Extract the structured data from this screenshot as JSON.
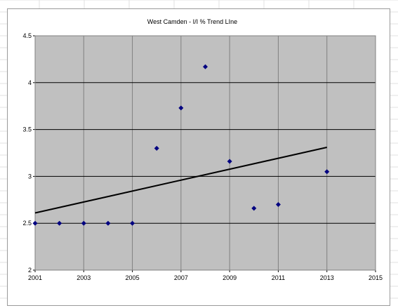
{
  "chart_data": {
    "type": "scatter",
    "title": "West Camden - I/I % Trend LIne",
    "xlabel": "",
    "ylabel": "",
    "xlim": [
      2001,
      2015
    ],
    "ylim": [
      2,
      4.5
    ],
    "x_ticks": [
      2001,
      2003,
      2005,
      2007,
      2009,
      2011,
      2013,
      2015
    ],
    "y_ticks": [
      2,
      2.5,
      3,
      3.5,
      4,
      4.5
    ],
    "x_tick_labels": [
      "2001",
      "2003",
      "2005",
      "2007",
      "2009",
      "2011",
      "2013",
      "2015"
    ],
    "y_tick_labels": [
      "2",
      "2.5",
      "3",
      "3.5",
      "4",
      "4.5"
    ],
    "grid": true,
    "legend": "none",
    "series": [
      {
        "x": [
          2001,
          2002,
          2003,
          2004,
          2005,
          2006,
          2007,
          2008,
          2009,
          2010,
          2011,
          2013
        ],
        "y": [
          2.5,
          2.5,
          2.5,
          2.5,
          2.5,
          3.3,
          3.73,
          4.17,
          3.16,
          2.66,
          2.7,
          3.05
        ]
      }
    ],
    "trendline": {
      "x": [
        2001,
        2013
      ],
      "y": [
        2.61,
        3.31
      ]
    },
    "colors": {
      "marker": "#000080",
      "trendline": "#000000",
      "plot_area": "#c0c0c0",
      "gridline": "#000000",
      "vertical_gridline": "#808080"
    }
  }
}
